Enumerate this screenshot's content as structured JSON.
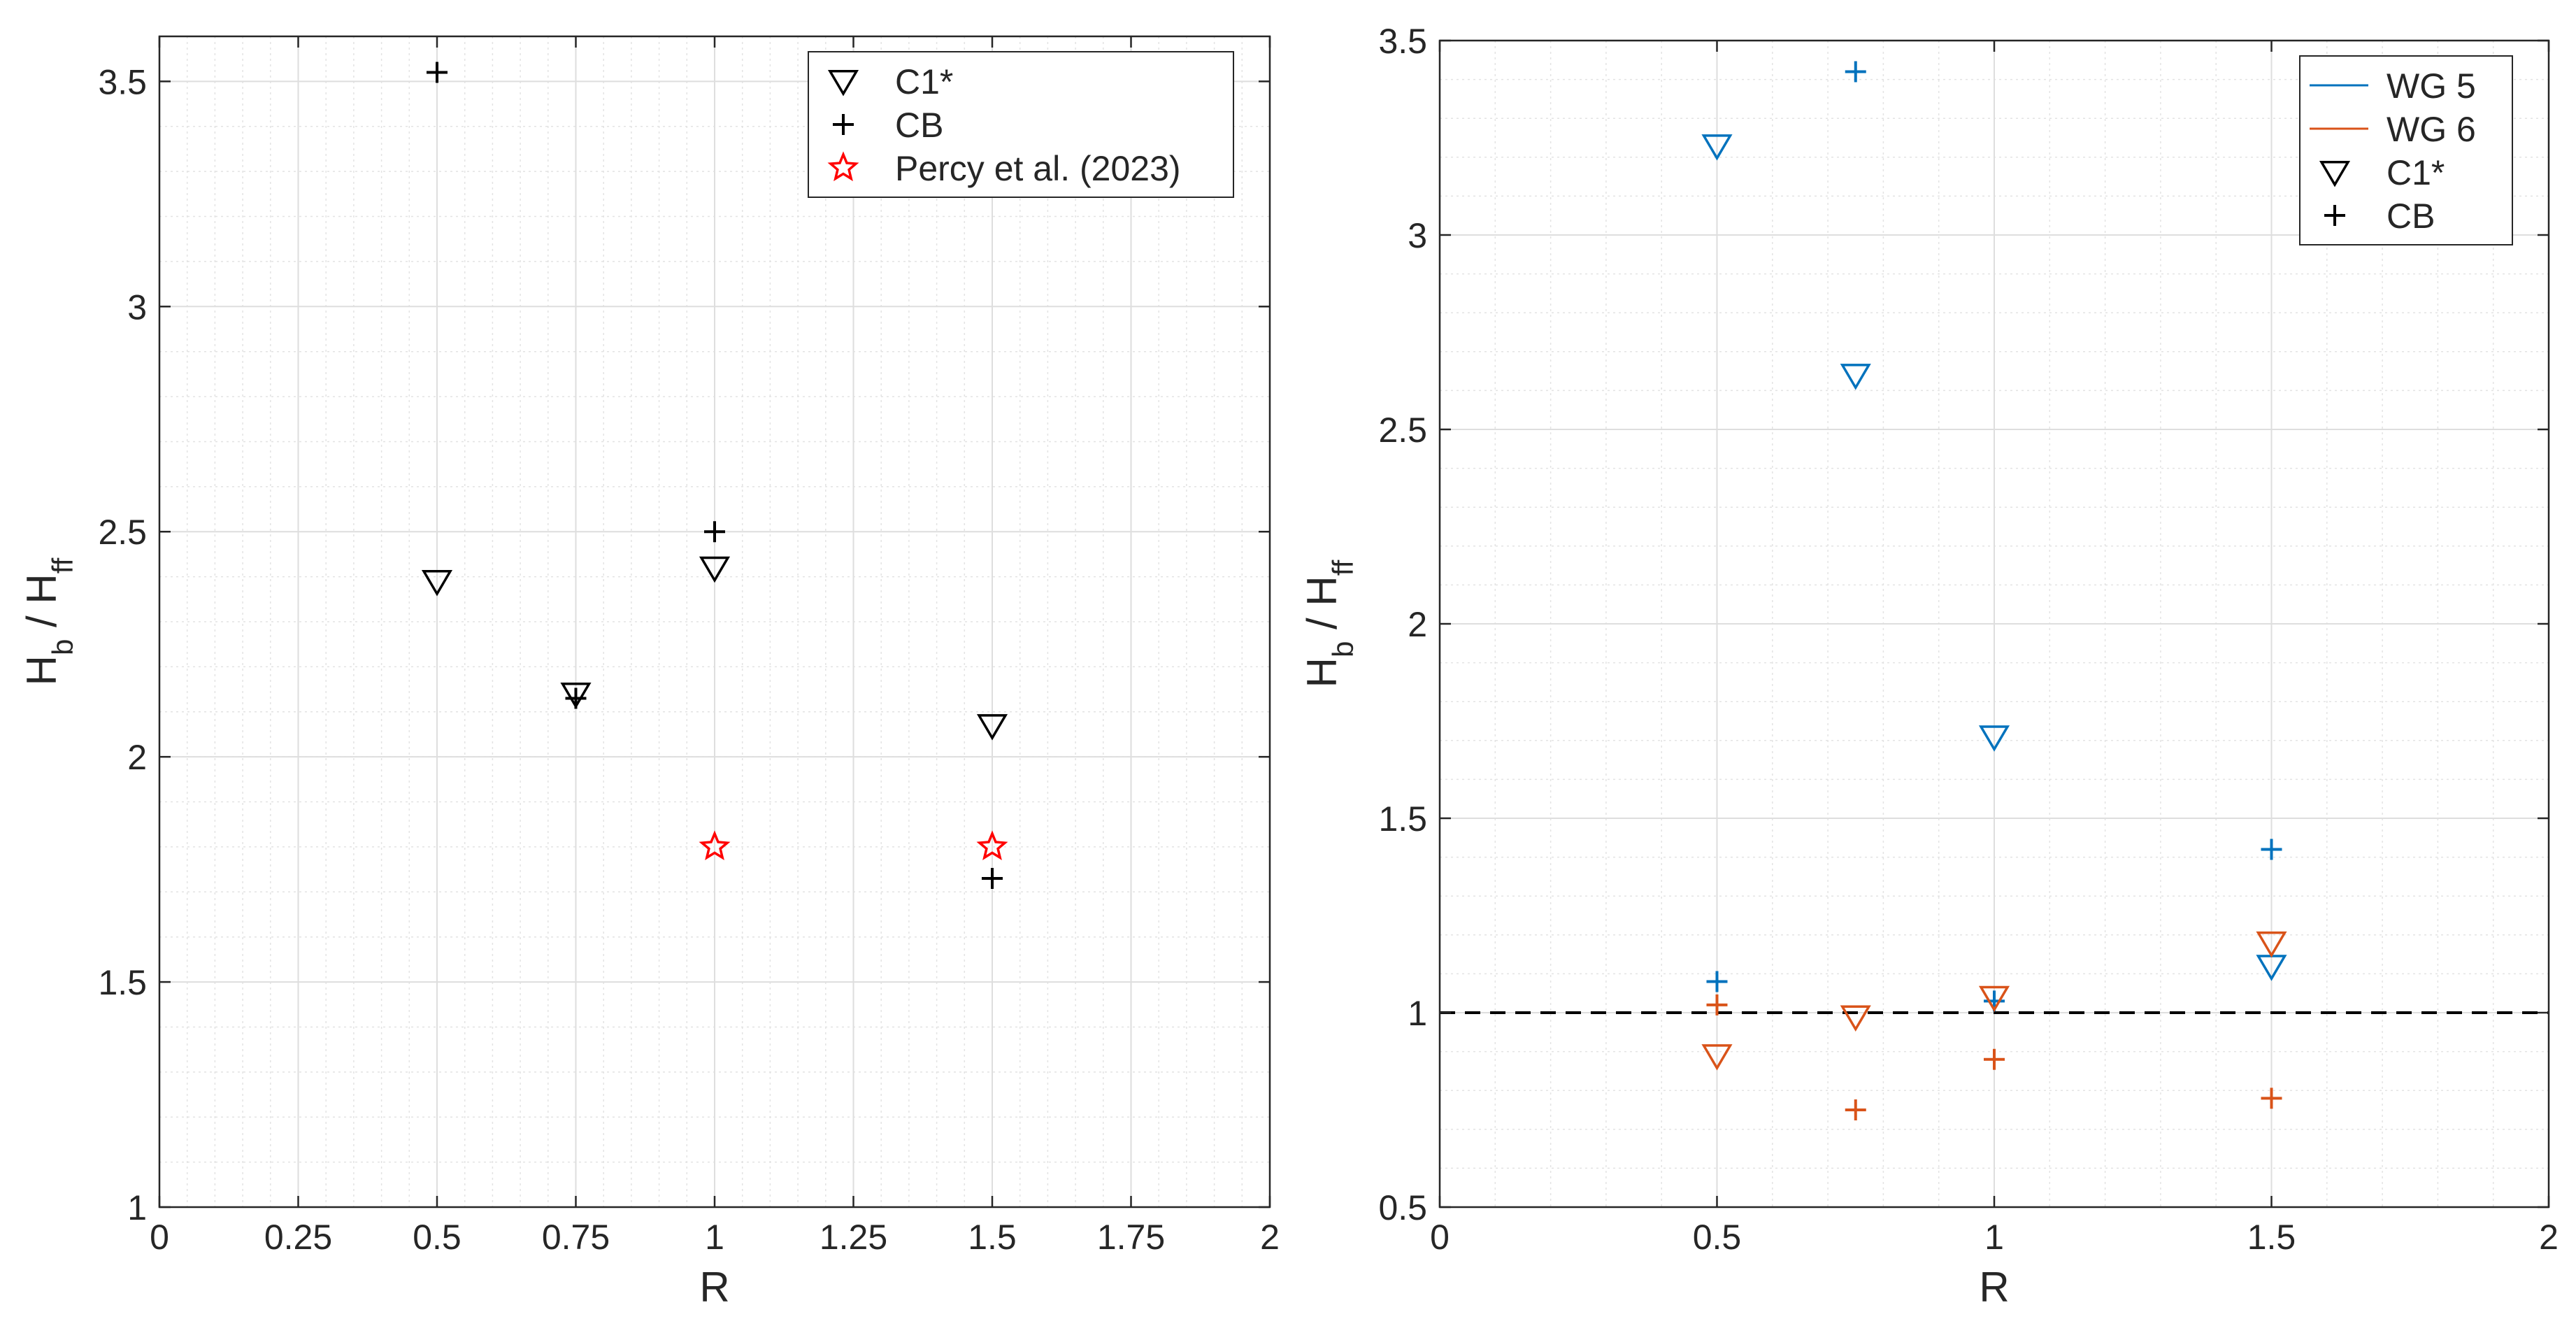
{
  "chart_data": [
    {
      "type": "scatter",
      "xlabel": "R",
      "ylabel": {
        "main": "H",
        "sub_num": "b",
        "sep": " / ",
        "main2": "H",
        "sub_den": "ff"
      },
      "xlim": [
        0,
        2
      ],
      "ylim": [
        1,
        3.6
      ],
      "xticks": [
        0,
        0.25,
        0.5,
        0.75,
        1,
        1.25,
        1.5,
        1.75,
        2
      ],
      "xtick_labels": [
        "0",
        "0.25",
        "0.5",
        "0.75",
        "1",
        "1.25",
        "1.5",
        "1.75",
        "2"
      ],
      "yticks": [
        1,
        1.5,
        2,
        2.5,
        3,
        3.5
      ],
      "ytick_labels": [
        "1",
        "1.5",
        "2",
        "2.5",
        "3",
        "3.5"
      ],
      "grid": true,
      "minor_grid": true,
      "legend_position": "top-right",
      "series": [
        {
          "name": "C1*",
          "marker": "triangle-down",
          "color": "#000000",
          "points": [
            [
              0.5,
              2.39
            ],
            [
              0.75,
              2.14
            ],
            [
              1.0,
              2.42
            ],
            [
              1.5,
              2.07
            ]
          ]
        },
        {
          "name": "CB",
          "marker": "plus",
          "color": "#000000",
          "points": [
            [
              0.5,
              3.52
            ],
            [
              0.75,
              2.13
            ],
            [
              1.0,
              2.5
            ],
            [
              1.5,
              1.73
            ]
          ]
        },
        {
          "name": "Percy et al. (2023)",
          "marker": "star",
          "color": "#ff0000",
          "points": [
            [
              1.0,
              1.8
            ],
            [
              1.5,
              1.8
            ]
          ]
        }
      ]
    },
    {
      "type": "scatter",
      "xlabel": "R",
      "ylabel": {
        "main": "H",
        "sub_num": "b",
        "sep": " / ",
        "main2": "H",
        "sub_den": "ff"
      },
      "xlim": [
        0,
        2
      ],
      "ylim": [
        0.5,
        3.5
      ],
      "xticks": [
        0,
        0.5,
        1,
        1.5,
        2
      ],
      "xtick_labels": [
        "0",
        "0.5",
        "1",
        "1.5",
        "2"
      ],
      "yticks": [
        0.5,
        1,
        1.5,
        2,
        2.5,
        3,
        3.5
      ],
      "ytick_labels": [
        "0.5",
        "1",
        "1.5",
        "2",
        "2.5",
        "3",
        "3.5"
      ],
      "grid": true,
      "minor_grid": true,
      "reference_line": {
        "y": 1,
        "style": "dashed",
        "color": "#000000"
      },
      "legend_position": "top-right",
      "legend": [
        {
          "name": "WG 5",
          "kind": "line",
          "color": "#0072bd"
        },
        {
          "name": "WG 6",
          "kind": "line",
          "color": "#d95319"
        },
        {
          "name": "C1*",
          "kind": "triangle-down",
          "color": "#000000"
        },
        {
          "name": "CB",
          "kind": "plus",
          "color": "#000000"
        }
      ],
      "series": [
        {
          "name": "WG 5 C1*",
          "marker": "triangle-down",
          "color": "#0072bd",
          "points": [
            [
              0.5,
              3.23
            ],
            [
              0.75,
              2.64
            ],
            [
              1.0,
              1.71
            ],
            [
              1.5,
              1.12
            ]
          ]
        },
        {
          "name": "WG 5 CB",
          "marker": "plus",
          "color": "#0072bd",
          "points": [
            [
              0.5,
              1.08
            ],
            [
              0.75,
              3.42
            ],
            [
              1.0,
              1.03
            ],
            [
              1.5,
              1.42
            ]
          ]
        },
        {
          "name": "WG 6 C1*",
          "marker": "triangle-down",
          "color": "#d95319",
          "points": [
            [
              0.5,
              0.89
            ],
            [
              0.75,
              0.99
            ],
            [
              1.0,
              1.04
            ],
            [
              1.5,
              1.18
            ]
          ]
        },
        {
          "name": "WG 6 CB",
          "marker": "plus",
          "color": "#d95319",
          "points": [
            [
              0.5,
              1.02
            ],
            [
              0.75,
              0.75
            ],
            [
              1.0,
              0.88
            ],
            [
              1.5,
              0.78
            ]
          ]
        }
      ]
    }
  ]
}
